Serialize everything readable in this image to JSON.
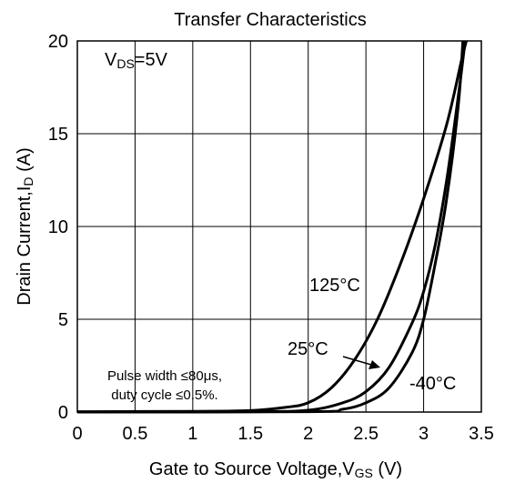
{
  "chart_data": {
    "type": "line",
    "title": "Transfer Characteristics",
    "xlabel": {
      "main": "Gate to Source Voltage,V",
      "sub": "GS",
      "unit": " (V)"
    },
    "ylabel": {
      "main": "Drain Current,I",
      "sub": "D",
      "unit": " (A)"
    },
    "xlim": [
      0,
      3.5
    ],
    "ylim": [
      0,
      20
    ],
    "xticks": [
      "0",
      "0.5",
      "1",
      "1.5",
      "2",
      "2.5",
      "3",
      "3.5"
    ],
    "yticks": [
      "0",
      "5",
      "10",
      "15",
      "20"
    ],
    "grid": true,
    "condition": {
      "main": "V",
      "sub": "DS",
      "rest": "=5V"
    },
    "note_lines": [
      "Pulse width ≤80μs,",
      "duty cycle ≤0.5%."
    ],
    "series": [
      {
        "name": "125°C",
        "color": "#000000",
        "points": [
          [
            0,
            0.02
          ],
          [
            1.0,
            0.04
          ],
          [
            1.5,
            0.08
          ],
          [
            1.8,
            0.25
          ],
          [
            2.0,
            0.5
          ],
          [
            2.2,
            1.3
          ],
          [
            2.4,
            2.8
          ],
          [
            2.6,
            5.0
          ],
          [
            2.8,
            8.0
          ],
          [
            3.0,
            11.5
          ],
          [
            3.2,
            15.5
          ],
          [
            3.33,
            19.0
          ],
          [
            3.37,
            20.0
          ]
        ]
      },
      {
        "name": "25°C",
        "color": "#000000",
        "points": [
          [
            0,
            0.0
          ],
          [
            1.5,
            0.02
          ],
          [
            2.0,
            0.1
          ],
          [
            2.3,
            0.5
          ],
          [
            2.5,
            1.1
          ],
          [
            2.7,
            2.4
          ],
          [
            2.9,
            4.8
          ],
          [
            3.0,
            6.5
          ],
          [
            3.1,
            9.0
          ],
          [
            3.2,
            12.5
          ],
          [
            3.3,
            17.0
          ],
          [
            3.36,
            20.0
          ]
        ]
      },
      {
        "name": "-40°C",
        "color": "#000000",
        "points": [
          [
            0,
            0.0
          ],
          [
            2.0,
            0.02
          ],
          [
            2.3,
            0.15
          ],
          [
            2.5,
            0.5
          ],
          [
            2.7,
            1.3
          ],
          [
            2.9,
            3.2
          ],
          [
            3.0,
            5.0
          ],
          [
            3.1,
            8.0
          ],
          [
            3.2,
            11.5
          ],
          [
            3.3,
            16.5
          ],
          [
            3.34,
            20.0
          ]
        ]
      }
    ],
    "labels": [
      "125°C",
      "25°C",
      "-40°C"
    ]
  }
}
